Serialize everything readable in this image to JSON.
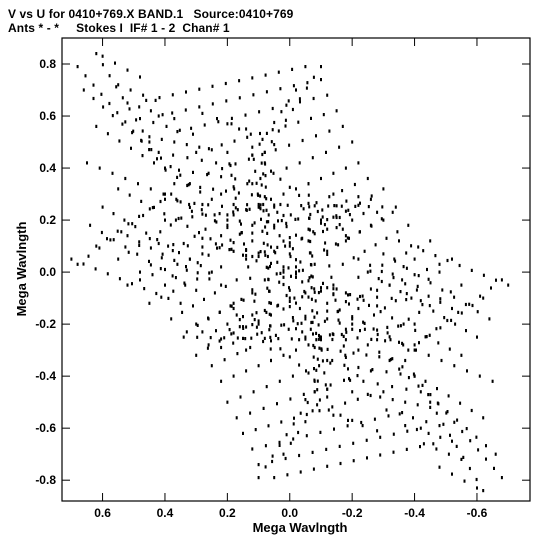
{
  "header": {
    "line1": "V vs U for 0410+769.X BAND.1   Source:0410+769",
    "line2": "Ants * - *     Stokes I  IF# 1 - 2  Chan# 1"
  },
  "chart_data": {
    "type": "scatter",
    "title": "V vs U for 0410+769.X BAND.1   Source:0410+769",
    "subtitle": "Ants * - *     Stokes I  IF# 1 - 2  Chan# 1",
    "xlabel": "Mega Wavlngth",
    "ylabel": "Mega Wavlngth",
    "xlim": [
      0.73,
      -0.77
    ],
    "ylim": [
      -0.88,
      0.9
    ],
    "x_reversed": true,
    "xticks": [
      0.6,
      0.4,
      0.2,
      0.0,
      -0.2,
      -0.4,
      -0.6
    ],
    "xtick_labels": [
      "0.6",
      "0.4",
      "0.2",
      "0.0",
      "-0.2",
      "-0.4",
      "-0.6"
    ],
    "yticks": [
      0.8,
      0.6,
      0.4,
      0.2,
      0.0,
      -0.2,
      -0.4,
      -0.6,
      -0.8
    ],
    "ytick_labels": [
      "0.8",
      "0.6",
      "0.4",
      "0.2",
      "0.0",
      "-0.2",
      "-0.4",
      "-0.6",
      "-0.8"
    ],
    "grid": false,
    "marker_color": "#000000",
    "series": [
      {
        "tracks": [
          {
            "from": [
              0.6,
              0.83
            ],
            "to": [
              0.48,
              0.75
            ]
          },
          {
            "from": [
              0.55,
              0.72
            ],
            "to": [
              0.43,
              0.66
            ]
          },
          {
            "from": [
              0.52,
              0.65
            ],
            "to": [
              0.37,
              0.59
            ]
          },
          {
            "from": [
              0.48,
              0.59
            ],
            "to": [
              0.31,
              0.53
            ]
          },
          {
            "from": [
              0.45,
              0.52
            ],
            "to": [
              0.25,
              0.47
            ]
          },
          {
            "from": [
              0.42,
              0.46
            ],
            "to": [
              0.19,
              0.41
            ]
          },
          {
            "from": [
              0.4,
              0.4
            ],
            "to": [
              0.13,
              0.35
            ]
          },
          {
            "from": [
              0.37,
              0.34
            ],
            "to": [
              0.08,
              0.29
            ]
          },
          {
            "from": [
              0.35,
              0.27
            ],
            "to": [
              0.04,
              0.23
            ]
          },
          {
            "from": [
              0.62,
              0.1
            ],
            "to": [
              0.38,
              0.3
            ]
          },
          {
            "from": [
              0.55,
              0.05
            ],
            "to": [
              0.28,
              0.26
            ]
          },
          {
            "from": [
              0.48,
              0.0
            ],
            "to": [
              0.2,
              0.22
            ]
          },
          {
            "from": [
              0.4,
              -0.05
            ],
            "to": [
              0.12,
              0.18
            ]
          },
          {
            "from": [
              0.68,
              0.03
            ],
            "to": [
              0.4,
              0.28
            ]
          },
          {
            "from": [
              0.18,
              0.26
            ],
            "to": [
              -0.34,
              0.25
            ]
          },
          {
            "from": [
              0.2,
              0.18
            ],
            "to": [
              -0.28,
              0.23
            ]
          },
          {
            "from": [
              0.08,
              0.46
            ],
            "to": [
              -0.1,
              0.79
            ]
          },
          {
            "from": [
              0.12,
              0.45
            ],
            "to": [
              -0.02,
              0.7
            ]
          },
          {
            "from": [
              0.2,
              0.57
            ],
            "to": [
              0.05,
              0.49
            ]
          },
          {
            "from": [
              0.28,
              0.61
            ],
            "to": [
              0.14,
              0.55
            ]
          },
          {
            "from": [
              0.52,
              -0.05
            ],
            "to": [
              0.28,
              0.07
            ]
          },
          {
            "from": [
              0.45,
              -0.12
            ],
            "to": [
              0.22,
              0.02
            ]
          },
          {
            "from": [
              0.38,
              -0.18
            ],
            "to": [
              0.17,
              -0.03
            ]
          },
          {
            "from": [
              0.33,
              -0.23
            ],
            "to": [
              0.12,
              -0.08
            ]
          },
          {
            "from": [
              0.3,
              -0.2
            ],
            "to": [
              -0.08,
              0.03
            ]
          },
          {
            "from": [
              0.26,
              -0.28
            ],
            "to": [
              -0.14,
              -0.05
            ]
          },
          {
            "from": [
              0.25,
              -0.36
            ],
            "to": [
              -0.12,
              -0.15
            ]
          },
          {
            "from": [
              0.22,
              -0.42
            ],
            "to": [
              -0.18,
              -0.22
            ]
          },
          {
            "from": [
              0.2,
              -0.5
            ],
            "to": [
              -0.22,
              -0.3
            ]
          },
          {
            "from": [
              0.17,
              -0.56
            ],
            "to": [
              -0.26,
              -0.38
            ]
          },
          {
            "from": [
              0.15,
              -0.62
            ],
            "to": [
              -0.3,
              -0.46
            ]
          },
          {
            "from": [
              0.12,
              -0.68
            ],
            "to": [
              -0.36,
              -0.54
            ]
          },
          {
            "from": [
              0.1,
              -0.74
            ],
            "to": [
              -0.42,
              -0.6
            ]
          },
          {
            "from": [
              0.05,
              -0.79
            ],
            "to": [
              -0.46,
              -0.66
            ]
          },
          {
            "from": [
              0.18,
              -0.14
            ],
            "to": [
              -0.12,
              -0.45
            ]
          },
          {
            "from": [
              0.0,
              -0.07
            ],
            "to": [
              -0.42,
              -0.11
            ]
          },
          {
            "from": [
              -0.05,
              -0.25
            ],
            "to": [
              -0.4,
              -0.2
            ]
          },
          {
            "from": [
              -0.18,
              -0.08
            ],
            "to": [
              -0.55,
              -0.32
            ]
          },
          {
            "from": [
              -0.25,
              0.0
            ],
            "to": [
              -0.6,
              -0.25
            ]
          },
          {
            "from": [
              -0.3,
              0.07
            ],
            "to": [
              -0.64,
              -0.18
            ]
          },
          {
            "from": [
              -0.35,
              0.12
            ],
            "to": [
              -0.7,
              -0.05
            ]
          },
          {
            "from": [
              -0.22,
              0.05
            ],
            "to": [
              -0.52,
              -0.14
            ]
          },
          {
            "from": [
              -0.2,
              -0.2
            ],
            "to": [
              -0.65,
              -0.42
            ]
          },
          {
            "from": [
              -0.25,
              -0.28
            ],
            "to": [
              -0.62,
              -0.56
            ]
          },
          {
            "from": [
              -0.32,
              -0.34
            ],
            "to": [
              -0.66,
              -0.7
            ]
          },
          {
            "from": [
              -0.4,
              -0.4
            ],
            "to": [
              -0.68,
              -0.79
            ]
          },
          {
            "from": [
              -0.45,
              -0.5
            ],
            "to": [
              -0.62,
              -0.84
            ]
          },
          {
            "from": [
              0.08,
              0.46
            ],
            "to": [
              0.06,
              -0.34
            ]
          },
          {
            "from": [
              0.03,
              0.26
            ],
            "to": [
              -0.05,
              -0.08
            ]
          },
          {
            "from": [
              -0.06,
              0.12
            ],
            "to": [
              -0.12,
              -0.48
            ]
          },
          {
            "from": [
              -0.1,
              0.2
            ],
            "to": [
              -0.2,
              -0.46
            ]
          },
          {
            "from": [
              0.18,
              -0.12
            ],
            "to": [
              0.14,
              -0.3
            ]
          },
          {
            "from": [
              0.28,
              0.13
            ],
            "to": [
              0.02,
              0.0
            ]
          },
          {
            "from": [
              0.05,
              0.17
            ],
            "to": [
              -0.22,
              0.29
            ]
          },
          {
            "from": [
              0.0,
              0.1
            ],
            "to": [
              -0.3,
              0.32
            ]
          },
          {
            "from": [
              0.12,
              0.06
            ],
            "to": [
              -0.2,
              0.2
            ]
          },
          {
            "from": [
              0.4,
              0.3
            ],
            "to": [
              0.12,
              0.12
            ]
          },
          {
            "from": [
              0.02,
              0.02
            ],
            "to": [
              -0.22,
              -0.14
            ]
          },
          {
            "from": [
              0.02,
              -0.02
            ],
            "to": [
              -0.12,
              -0.34
            ]
          },
          {
            "from": [
              0.1,
              0.25
            ],
            "to": [
              0.08,
              0.42
            ]
          }
        ]
      }
    ]
  }
}
